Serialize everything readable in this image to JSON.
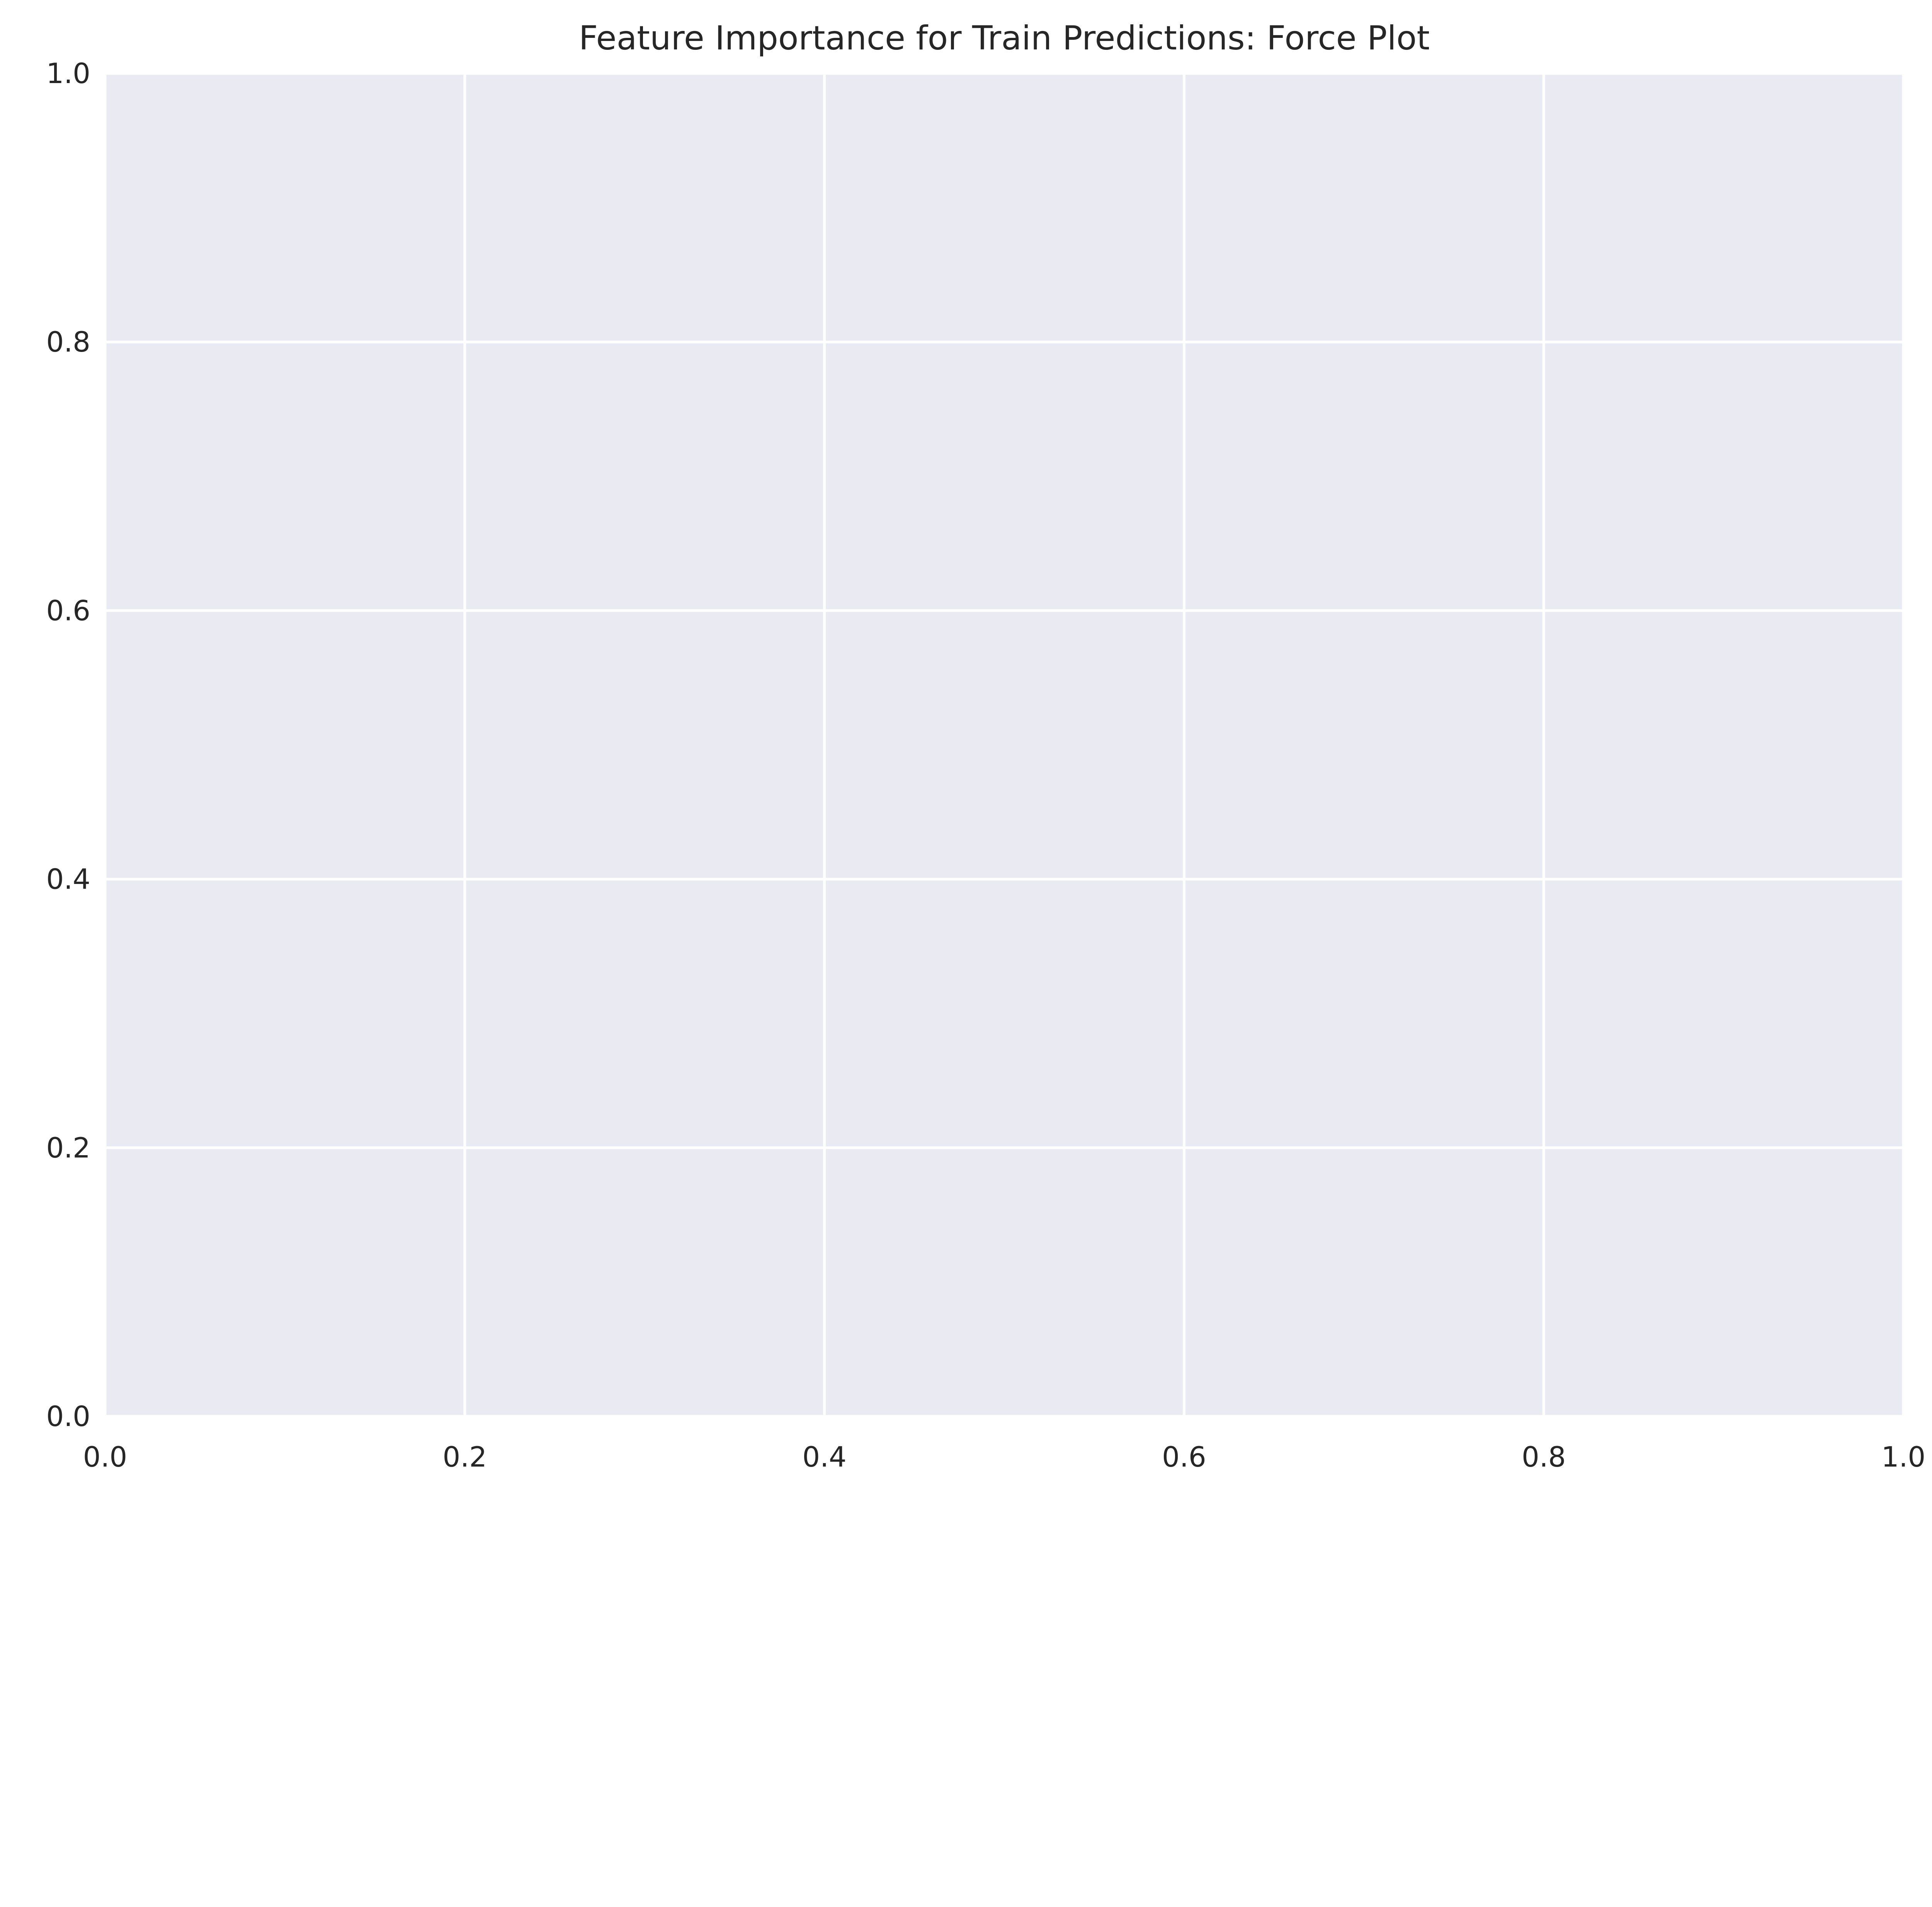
{
  "chart_data": {
    "type": "scatter",
    "title": "Feature Importance for Train Predictions: Force Plot",
    "xlabel": "",
    "ylabel": "",
    "xlim": [
      0.0,
      1.0
    ],
    "ylim": [
      0.0,
      1.0
    ],
    "x_ticks": [
      "0.0",
      "0.2",
      "0.4",
      "0.6",
      "0.8",
      "1.0"
    ],
    "y_ticks": [
      "0.0",
      "0.2",
      "0.4",
      "0.6",
      "0.8",
      "1.0"
    ],
    "series": [],
    "grid": true,
    "legend": "none",
    "colors": {
      "plot_background": "#eaeaf2",
      "grid": "#ffffff",
      "text": "#262626",
      "figure_background": "#ffffff"
    }
  }
}
